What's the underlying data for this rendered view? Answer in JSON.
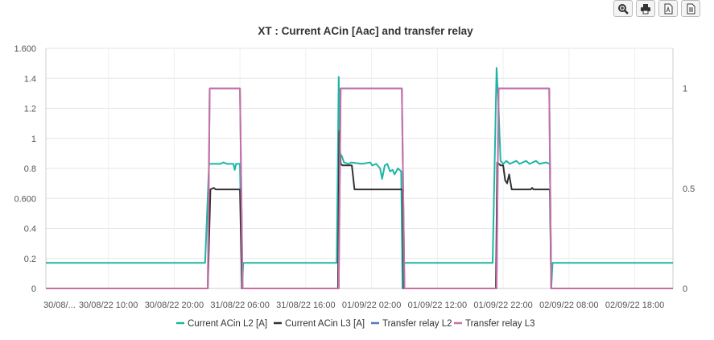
{
  "toolbar": {
    "zoom": "zoom-icon",
    "print": "print-icon",
    "pdf": "pdf-icon",
    "csv": "document-icon"
  },
  "chart_data": {
    "type": "line",
    "title": "XT : Current ACin [Aac] and transfer relay",
    "xlabel": "",
    "ylabel": "",
    "x_unit": "hours since 30/08/22 00:00",
    "xlim": [
      0.5,
      95.8
    ],
    "x_ticks": [
      {
        "h": 0,
        "label": "30/08/..."
      },
      {
        "h": 10,
        "label": "30/08/22 10:00"
      },
      {
        "h": 20,
        "label": "30/08/22 20:00"
      },
      {
        "h": 30,
        "label": "31/08/22 06:00"
      },
      {
        "h": 40,
        "label": "31/08/22 16:00"
      },
      {
        "h": 50,
        "label": "01/09/22 02:00"
      },
      {
        "h": 60,
        "label": "01/09/22 12:00"
      },
      {
        "h": 70,
        "label": "01/09/22 22:00"
      },
      {
        "h": 80,
        "label": "02/09/22 08:00"
      },
      {
        "h": 90,
        "label": "02/09/22 18:00"
      }
    ],
    "ylim_left": [
      0,
      1.6
    ],
    "y_ticks_left": [
      {
        "v": 0,
        "label": "0"
      },
      {
        "v": 0.2,
        "label": "0.2"
      },
      {
        "v": 0.4,
        "label": "0.4"
      },
      {
        "v": 0.6,
        "label": "0.600"
      },
      {
        "v": 0.8,
        "label": "0.8"
      },
      {
        "v": 1.0,
        "label": "1"
      },
      {
        "v": 1.2,
        "label": "1.2"
      },
      {
        "v": 1.4,
        "label": "1.4"
      },
      {
        "v": 1.6,
        "label": "1.600"
      }
    ],
    "ylim_right": [
      0,
      1.2
    ],
    "y_ticks_right": [
      {
        "v": 0,
        "label": "0"
      },
      {
        "v": 0.5,
        "label": "0.5"
      },
      {
        "v": 1,
        "label": "1"
      }
    ],
    "grid": true,
    "legend_position": "bottom",
    "series": [
      {
        "name": "Current ACin L2 [A]",
        "color": "#1fb5a5",
        "axis": "left",
        "points": [
          [
            0.5,
            0.17
          ],
          [
            24.7,
            0.17
          ],
          [
            25.3,
            0.83
          ],
          [
            26,
            0.83
          ],
          [
            27,
            0.83
          ],
          [
            27.5,
            0.84
          ],
          [
            28,
            0.83
          ],
          [
            29,
            0.83
          ],
          [
            29.2,
            0.79
          ],
          [
            29.4,
            0.83
          ],
          [
            30,
            0.83
          ],
          [
            30.3,
            0
          ],
          [
            30.5,
            0.17
          ],
          [
            44.7,
            0.17
          ],
          [
            45.0,
            1.41
          ],
          [
            45.2,
            0.9
          ],
          [
            45.5,
            0.88
          ],
          [
            45.8,
            0.84
          ],
          [
            46.5,
            0.83
          ],
          [
            46.9,
            0.84
          ],
          [
            48.5,
            0.83
          ],
          [
            49.8,
            0.84
          ],
          [
            50.1,
            0.82
          ],
          [
            50.7,
            0.83
          ],
          [
            51.3,
            0.8
          ],
          [
            51.6,
            0.73
          ],
          [
            52.0,
            0.82
          ],
          [
            52.4,
            0.83
          ],
          [
            52.8,
            0.78
          ],
          [
            53.2,
            0.79
          ],
          [
            53.5,
            0.76
          ],
          [
            54.0,
            0.8
          ],
          [
            54.5,
            0.78
          ],
          [
            54.7,
            0
          ],
          [
            54.9,
            0.17
          ],
          [
            68.4,
            0.17
          ],
          [
            69.0,
            1.47
          ],
          [
            69.3,
            1.2
          ],
          [
            69.6,
            0.85
          ],
          [
            70,
            0.83
          ],
          [
            70.5,
            0.85
          ],
          [
            71,
            0.83
          ],
          [
            72,
            0.85
          ],
          [
            72.5,
            0.83
          ],
          [
            73.5,
            0.85
          ],
          [
            74,
            0.83
          ],
          [
            75,
            0.85
          ],
          [
            75.5,
            0.83
          ],
          [
            76.5,
            0.84
          ],
          [
            77.1,
            0.83
          ],
          [
            77.3,
            0
          ],
          [
            77.5,
            0.17
          ],
          [
            95.8,
            0.17
          ]
        ]
      },
      {
        "name": "Current ACin L3 [A]",
        "color": "#333333",
        "axis": "left",
        "points": [
          [
            0.5,
            0
          ],
          [
            25.1,
            0
          ],
          [
            25.5,
            0.66
          ],
          [
            26,
            0.67
          ],
          [
            26.3,
            0.66
          ],
          [
            30,
            0.66
          ],
          [
            30.3,
            0
          ],
          [
            44.9,
            0
          ],
          [
            45.1,
            1.05
          ],
          [
            45.3,
            0.83
          ],
          [
            45.6,
            0.82
          ],
          [
            47.0,
            0.82
          ],
          [
            47.4,
            0.66
          ],
          [
            54.7,
            0.66
          ],
          [
            54.9,
            0
          ],
          [
            68.9,
            0
          ],
          [
            69.1,
            0.84
          ],
          [
            69.6,
            0.82
          ],
          [
            70,
            0.82
          ],
          [
            70.3,
            0.72
          ],
          [
            70.6,
            0.7
          ],
          [
            70.9,
            0.76
          ],
          [
            71.3,
            0.66
          ],
          [
            74.2,
            0.66
          ],
          [
            74.4,
            0.67
          ],
          [
            74.6,
            0.66
          ],
          [
            77.1,
            0.66
          ],
          [
            77.3,
            0
          ],
          [
            95.8,
            0
          ]
        ]
      },
      {
        "name": "Transfer relay L2",
        "color": "#4a7fc1",
        "axis": "right",
        "points": [
          [
            0.5,
            0
          ],
          [
            25.1,
            0
          ],
          [
            25.4,
            1
          ],
          [
            30,
            1
          ],
          [
            30.4,
            0
          ],
          [
            45,
            0
          ],
          [
            45.3,
            1
          ],
          [
            54.6,
            1
          ],
          [
            55,
            0
          ],
          [
            69,
            0
          ],
          [
            69.3,
            1
          ],
          [
            77,
            1
          ],
          [
            77.3,
            0
          ],
          [
            95.8,
            0
          ]
        ]
      },
      {
        "name": "Transfer relay L3",
        "color": "#c96fa5",
        "axis": "right",
        "points": [
          [
            0.5,
            0
          ],
          [
            25.1,
            0
          ],
          [
            25.4,
            1
          ],
          [
            30,
            1
          ],
          [
            30.4,
            0
          ],
          [
            45,
            0
          ],
          [
            45.3,
            1
          ],
          [
            54.6,
            1
          ],
          [
            55,
            0
          ],
          [
            69,
            0
          ],
          [
            69.3,
            1
          ],
          [
            77,
            1
          ],
          [
            77.3,
            0
          ],
          [
            95.8,
            0
          ]
        ]
      }
    ]
  }
}
